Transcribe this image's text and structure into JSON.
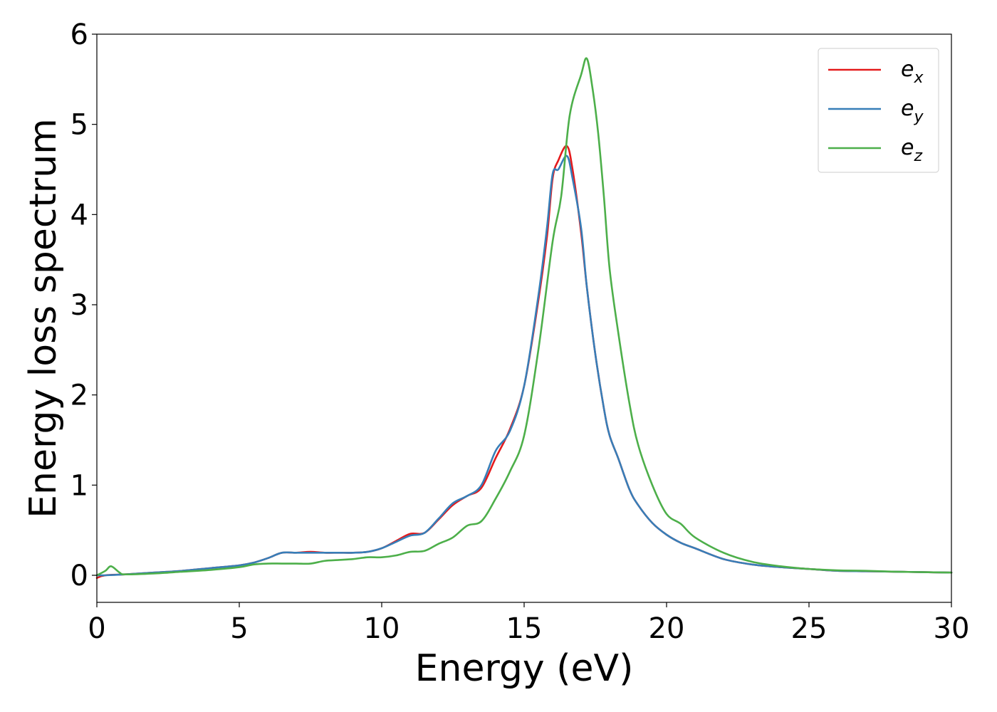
{
  "chart_data": {
    "type": "line",
    "title": "",
    "xlabel": "Energy (eV)",
    "ylabel": "Energy loss spectrum",
    "xlim": [
      0,
      30
    ],
    "ylim": [
      -0.3,
      6.0
    ],
    "xticks": [
      0,
      5,
      10,
      15,
      20,
      25,
      30
    ],
    "yticks": [
      0,
      1,
      2,
      3,
      4,
      5,
      6
    ],
    "grid": false,
    "legend_position": "top-right",
    "series": [
      {
        "name": "e_x",
        "legend_main": "e",
        "legend_sub": "x",
        "color": "#e41a1c",
        "x": [
          0,
          0.3,
          1,
          2,
          3,
          4,
          5,
          5.5,
          6,
          6.5,
          7,
          7.5,
          8,
          8.5,
          9,
          9.5,
          10,
          10.5,
          11,
          11.5,
          12,
          12.5,
          13,
          13.5,
          14,
          14.5,
          15,
          15.5,
          15.8,
          16,
          16.2,
          16.5,
          16.7,
          17,
          17.2,
          17.5,
          17.8,
          18,
          18.3,
          18.7,
          19,
          19.5,
          20,
          20.5,
          21,
          22,
          23,
          24,
          25,
          26,
          27,
          28,
          29,
          30
        ],
        "y": [
          -0.03,
          0.0,
          0.01,
          0.03,
          0.05,
          0.08,
          0.11,
          0.14,
          0.19,
          0.25,
          0.25,
          0.26,
          0.25,
          0.25,
          0.25,
          0.26,
          0.3,
          0.38,
          0.46,
          0.47,
          0.62,
          0.78,
          0.88,
          0.97,
          1.3,
          1.62,
          2.1,
          3.05,
          3.75,
          4.4,
          4.6,
          4.76,
          4.5,
          3.8,
          3.2,
          2.45,
          1.85,
          1.55,
          1.3,
          0.95,
          0.78,
          0.58,
          0.45,
          0.36,
          0.3,
          0.18,
          0.12,
          0.09,
          0.07,
          0.05,
          0.045,
          0.04,
          0.035,
          0.03
        ]
      },
      {
        "name": "e_y",
        "legend_main": "e",
        "legend_sub": "y",
        "color": "#377eb8",
        "x": [
          0,
          0.3,
          1,
          2,
          3,
          4,
          5,
          5.5,
          6,
          6.5,
          7,
          7.5,
          8,
          8.5,
          9,
          9.5,
          10,
          10.5,
          11,
          11.5,
          12,
          12.5,
          13,
          13.5,
          14,
          14.5,
          15,
          15.5,
          15.8,
          16,
          16.2,
          16.5,
          16.7,
          17,
          17.2,
          17.5,
          17.8,
          18,
          18.3,
          18.7,
          19,
          19.5,
          20,
          20.5,
          21,
          22,
          23,
          24,
          25,
          26,
          27,
          28,
          29,
          30
        ],
        "y": [
          0.0,
          0.0,
          0.01,
          0.03,
          0.05,
          0.08,
          0.11,
          0.14,
          0.19,
          0.25,
          0.25,
          0.25,
          0.25,
          0.25,
          0.25,
          0.26,
          0.3,
          0.37,
          0.44,
          0.47,
          0.63,
          0.8,
          0.88,
          1.0,
          1.38,
          1.6,
          2.1,
          3.1,
          3.85,
          4.45,
          4.5,
          4.65,
          4.4,
          3.85,
          3.2,
          2.45,
          1.85,
          1.55,
          1.3,
          0.95,
          0.78,
          0.58,
          0.45,
          0.36,
          0.3,
          0.18,
          0.12,
          0.09,
          0.07,
          0.05,
          0.045,
          0.04,
          0.035,
          0.03
        ]
      },
      {
        "name": "e_z",
        "legend_main": "e",
        "legend_sub": "z",
        "color": "#4daf4a",
        "x": [
          0,
          0.3,
          0.5,
          0.8,
          1,
          2,
          3,
          4,
          5,
          5.5,
          6,
          6.5,
          7,
          7.5,
          8,
          8.5,
          9,
          9.5,
          10,
          10.5,
          11,
          11.5,
          12,
          12.5,
          13,
          13.5,
          14,
          14.5,
          15,
          15.5,
          16,
          16.3,
          16.6,
          17,
          17.2,
          17.4,
          17.6,
          17.8,
          18,
          18.3,
          18.7,
          19,
          19.5,
          20,
          20.5,
          21,
          22,
          23,
          24,
          25,
          26,
          27,
          28,
          29,
          30
        ],
        "y": [
          0.0,
          0.05,
          0.1,
          0.03,
          0.01,
          0.02,
          0.04,
          0.06,
          0.09,
          0.12,
          0.13,
          0.13,
          0.13,
          0.13,
          0.16,
          0.17,
          0.18,
          0.2,
          0.2,
          0.22,
          0.26,
          0.27,
          0.35,
          0.42,
          0.55,
          0.6,
          0.85,
          1.15,
          1.55,
          2.5,
          3.7,
          4.2,
          5.1,
          5.55,
          5.73,
          5.4,
          4.9,
          4.2,
          3.4,
          2.7,
          1.9,
          1.45,
          1.0,
          0.68,
          0.57,
          0.42,
          0.25,
          0.15,
          0.1,
          0.07,
          0.055,
          0.05,
          0.04,
          0.035,
          0.03
        ]
      }
    ]
  }
}
